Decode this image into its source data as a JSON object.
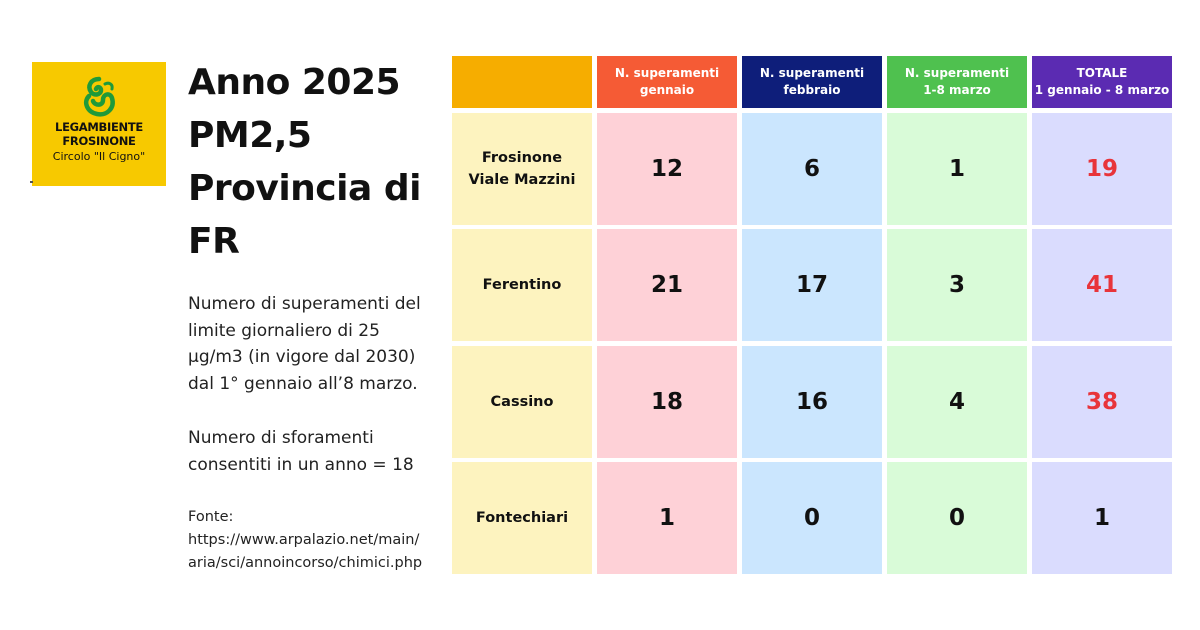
{
  "logo": {
    "line1": "LEGAMBIENTE",
    "line2": "FROSINONE",
    "line3": "Circolo \"Il Cigno\"",
    "icon": "swan-logo-icon",
    "color": "#f7c900"
  },
  "title": {
    "line1": "Anno 2025",
    "line2": "PM2,5",
    "line3": "Provincia di",
    "line4": "FR"
  },
  "description": {
    "line1": "Numero di superamenti del",
    "line2": "limite giornaliero di 25",
    "line3": "µg/m3 (in vigore dal 2030)",
    "line4": "dal 1° gennaio all’8 marzo."
  },
  "limit": {
    "line1": "Numero di sforamenti",
    "line2": "consentiti in un anno = 18"
  },
  "source": {
    "label": "Fonte:",
    "line1": "https://www.arpalazio.net/main/",
    "line2": "aria/sci/annoincorso/chimici.php"
  },
  "chart_data": {
    "type": "table",
    "columns": [
      {
        "line1": "",
        "line2": ""
      },
      {
        "line1": "N. superamenti",
        "line2": "gennaio"
      },
      {
        "line1": "N. superamenti",
        "line2": "febbraio"
      },
      {
        "line1": "N. superamenti",
        "line2": "1-8 marzo"
      },
      {
        "line1": "TOTALE",
        "line2": "1 gennaio - 8 marzo"
      }
    ],
    "rows": [
      {
        "label1": "Frosinone",
        "label2": "Viale Mazzini",
        "gennaio": "12",
        "febbraio": "6",
        "marzo": "1",
        "totale": "19"
      },
      {
        "label1": "Ferentino",
        "label2": "",
        "gennaio": "21",
        "febbraio": "17",
        "marzo": "3",
        "totale": "41"
      },
      {
        "label1": "Cassino",
        "label2": "",
        "gennaio": "18",
        "febbraio": "16",
        "marzo": "4",
        "totale": "38"
      },
      {
        "label1": "Fontechiari",
        "label2": "",
        "gennaio": "1",
        "febbraio": "0",
        "marzo": "0",
        "totale": "1"
      }
    ],
    "colors": {
      "header_station": "#f6ad00",
      "header_gennaio": "#f55b35",
      "header_febbraio": "#0e1e7a",
      "header_marzo": "#4fc14f",
      "header_totale": "#5b2bb2",
      "total_over_limit": "#e8343a"
    }
  }
}
